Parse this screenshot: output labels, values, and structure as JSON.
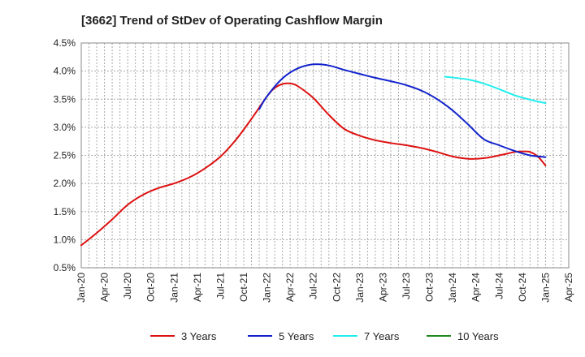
{
  "chart_data": {
    "type": "line",
    "title": "[3662]  Trend of StDev of Operating Cashflow Margin",
    "xlabel": "",
    "ylabel": "",
    "ylim": [
      0.005,
      0.045
    ],
    "yticks": [
      {
        "value": 0.045,
        "label": "4.5%"
      },
      {
        "value": 0.04,
        "label": "4.0%"
      },
      {
        "value": 0.035,
        "label": "3.5%"
      },
      {
        "value": 0.03,
        "label": "3.0%"
      },
      {
        "value": 0.025,
        "label": "2.5%"
      },
      {
        "value": 0.02,
        "label": "2.0%"
      },
      {
        "value": 0.015,
        "label": "1.5%"
      },
      {
        "value": 0.01,
        "label": "1.0%"
      },
      {
        "value": 0.005,
        "label": "0.5%"
      }
    ],
    "xlim": [
      0,
      60
    ],
    "xticks": [
      {
        "value": 0,
        "label": "Jan-20"
      },
      {
        "value": 3,
        "label": "Apr-20"
      },
      {
        "value": 6,
        "label": "Jul-20"
      },
      {
        "value": 9,
        "label": "Oct-20"
      },
      {
        "value": 12,
        "label": "Jan-21"
      },
      {
        "value": 15,
        "label": "Apr-21"
      },
      {
        "value": 18,
        "label": "Jul-21"
      },
      {
        "value": 21,
        "label": "Oct-21"
      },
      {
        "value": 24,
        "label": "Jan-22"
      },
      {
        "value": 27,
        "label": "Apr-22"
      },
      {
        "value": 30,
        "label": "Jul-22"
      },
      {
        "value": 33,
        "label": "Oct-22"
      },
      {
        "value": 36,
        "label": "Jan-23"
      },
      {
        "value": 39,
        "label": "Apr-23"
      },
      {
        "value": 42,
        "label": "Jul-23"
      },
      {
        "value": 45,
        "label": "Oct-23"
      },
      {
        "value": 48,
        "label": "Jan-24"
      },
      {
        "value": 51,
        "label": "Apr-24"
      },
      {
        "value": 54,
        "label": "Jul-24"
      },
      {
        "value": 57,
        "label": "Oct-24"
      },
      {
        "value": 60,
        "label": "Jan-25"
      },
      {
        "value": 63,
        "label": "Apr-25"
      }
    ],
    "series": [
      {
        "name": "3 Years",
        "color": "#dd1111",
        "points": [
          [
            0,
            0.009
          ],
          [
            2,
            0.0112
          ],
          [
            4,
            0.0136
          ],
          [
            6,
            0.0162
          ],
          [
            8,
            0.018
          ],
          [
            10,
            0.0192
          ],
          [
            12,
            0.02
          ],
          [
            14,
            0.0211
          ],
          [
            16,
            0.0227
          ],
          [
            18,
            0.0248
          ],
          [
            20,
            0.0278
          ],
          [
            22,
            0.0315
          ],
          [
            24,
            0.0355
          ],
          [
            25,
            0.037
          ],
          [
            26,
            0.0377
          ],
          [
            27,
            0.0378
          ],
          [
            28,
            0.0373
          ],
          [
            30,
            0.0352
          ],
          [
            32,
            0.0322
          ],
          [
            34,
            0.0297
          ],
          [
            36,
            0.0285
          ],
          [
            38,
            0.0277
          ],
          [
            40,
            0.0272
          ],
          [
            42,
            0.0268
          ],
          [
            44,
            0.0263
          ],
          [
            46,
            0.0256
          ],
          [
            48,
            0.0248
          ],
          [
            50,
            0.0244
          ],
          [
            52,
            0.0245
          ],
          [
            54,
            0.025
          ],
          [
            56,
            0.0256
          ],
          [
            57,
            0.0257
          ],
          [
            58,
            0.0256
          ],
          [
            59,
            0.0248
          ],
          [
            60,
            0.0232
          ]
        ]
      },
      {
        "name": "5 Years",
        "color": "#1122cc",
        "points": [
          [
            23,
            0.0332
          ],
          [
            24,
            0.0355
          ],
          [
            26,
            0.0387
          ],
          [
            28,
            0.0405
          ],
          [
            30,
            0.0412
          ],
          [
            32,
            0.041
          ],
          [
            34,
            0.0402
          ],
          [
            36,
            0.0395
          ],
          [
            38,
            0.0388
          ],
          [
            40,
            0.0382
          ],
          [
            42,
            0.0375
          ],
          [
            44,
            0.0365
          ],
          [
            46,
            0.035
          ],
          [
            48,
            0.033
          ],
          [
            50,
            0.0305
          ],
          [
            52,
            0.0279
          ],
          [
            54,
            0.0268
          ],
          [
            56,
            0.0258
          ],
          [
            58,
            0.025
          ],
          [
            60,
            0.0247
          ]
        ]
      },
      {
        "name": "7 Years",
        "color": "#22eeee",
        "points": [
          [
            47,
            0.039
          ],
          [
            50,
            0.0385
          ],
          [
            52,
            0.0378
          ],
          [
            54,
            0.0368
          ],
          [
            56,
            0.0357
          ],
          [
            58,
            0.0349
          ],
          [
            60,
            0.0343
          ]
        ]
      },
      {
        "name": "10 Years",
        "color": "#228822",
        "points": []
      }
    ]
  }
}
